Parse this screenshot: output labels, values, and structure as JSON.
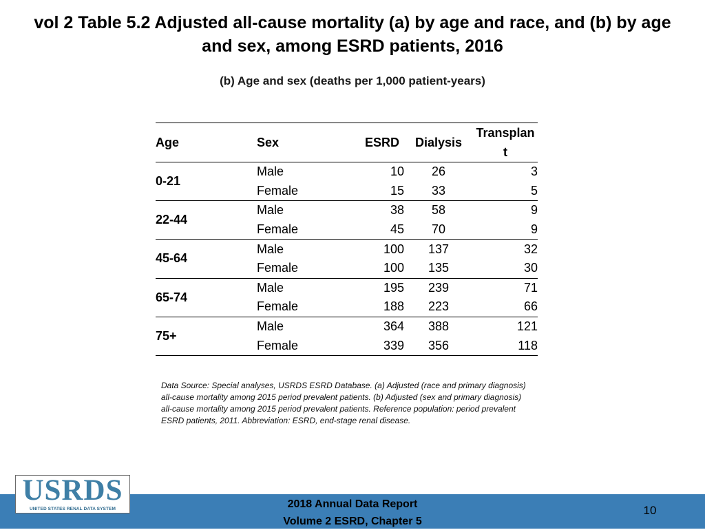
{
  "title": "vol 2 Table 5.2 Adjusted all-cause mortality (a) by age and race, and (b) by age and sex, among ESRD patients, 2016",
  "subtitle": "(b) Age and sex (deaths per 1,000 patient-years)",
  "table": {
    "headers": {
      "age": "Age",
      "sex": "Sex",
      "esrd": "ESRD",
      "dialysis": "Dialysis",
      "transplant_1": "Transplan",
      "transplant_2": "t"
    },
    "groups": [
      {
        "age": "0-21",
        "rows": [
          {
            "sex": "Male",
            "esrd": "10",
            "dialysis": "26",
            "transplant": "3"
          },
          {
            "sex": "Female",
            "esrd": "15",
            "dialysis": "33",
            "transplant": "5"
          }
        ]
      },
      {
        "age": "22-44",
        "rows": [
          {
            "sex": "Male",
            "esrd": "38",
            "dialysis": "58",
            "transplant": "9"
          },
          {
            "sex": "Female",
            "esrd": "45",
            "dialysis": "70",
            "transplant": "9"
          }
        ]
      },
      {
        "age": "45-64",
        "rows": [
          {
            "sex": "Male",
            "esrd": "100",
            "dialysis": "137",
            "transplant": "32"
          },
          {
            "sex": "Female",
            "esrd": "100",
            "dialysis": "135",
            "transplant": "30"
          }
        ]
      },
      {
        "age": "65-74",
        "rows": [
          {
            "sex": "Male",
            "esrd": "195",
            "dialysis": "239",
            "transplant": "71"
          },
          {
            "sex": "Female",
            "esrd": "188",
            "dialysis": "223",
            "transplant": "66"
          }
        ]
      },
      {
        "age": "75+",
        "rows": [
          {
            "sex": "Male",
            "esrd": "364",
            "dialysis": "388",
            "transplant": "121"
          },
          {
            "sex": "Female",
            "esrd": "339",
            "dialysis": "356",
            "transplant": "118"
          }
        ]
      }
    ]
  },
  "source_note": "Data Source: Special analyses, USRDS ESRD Database. (a) Adjusted (race and primary diagnosis) all-cause mortality among 2015 period prevalent patients. (b) Adjusted (sex and primary diagnosis) all-cause mortality among 2015 period prevalent patients. Reference population: period prevalent ESRD patients, 2011. Abbreviation: ESRD, end-stage renal disease.",
  "footer": {
    "logo_text": "USRDS",
    "logo_subtext": "UNITED STATES RENAL DATA SYSTEM",
    "report_line1": "2018 Annual Data Report",
    "report_line2": "Volume 2 ESRD, Chapter 5",
    "page_number": "10"
  },
  "colors": {
    "footer_bar": "#3b7eb6",
    "logo_blue": "#3e7fa6"
  }
}
